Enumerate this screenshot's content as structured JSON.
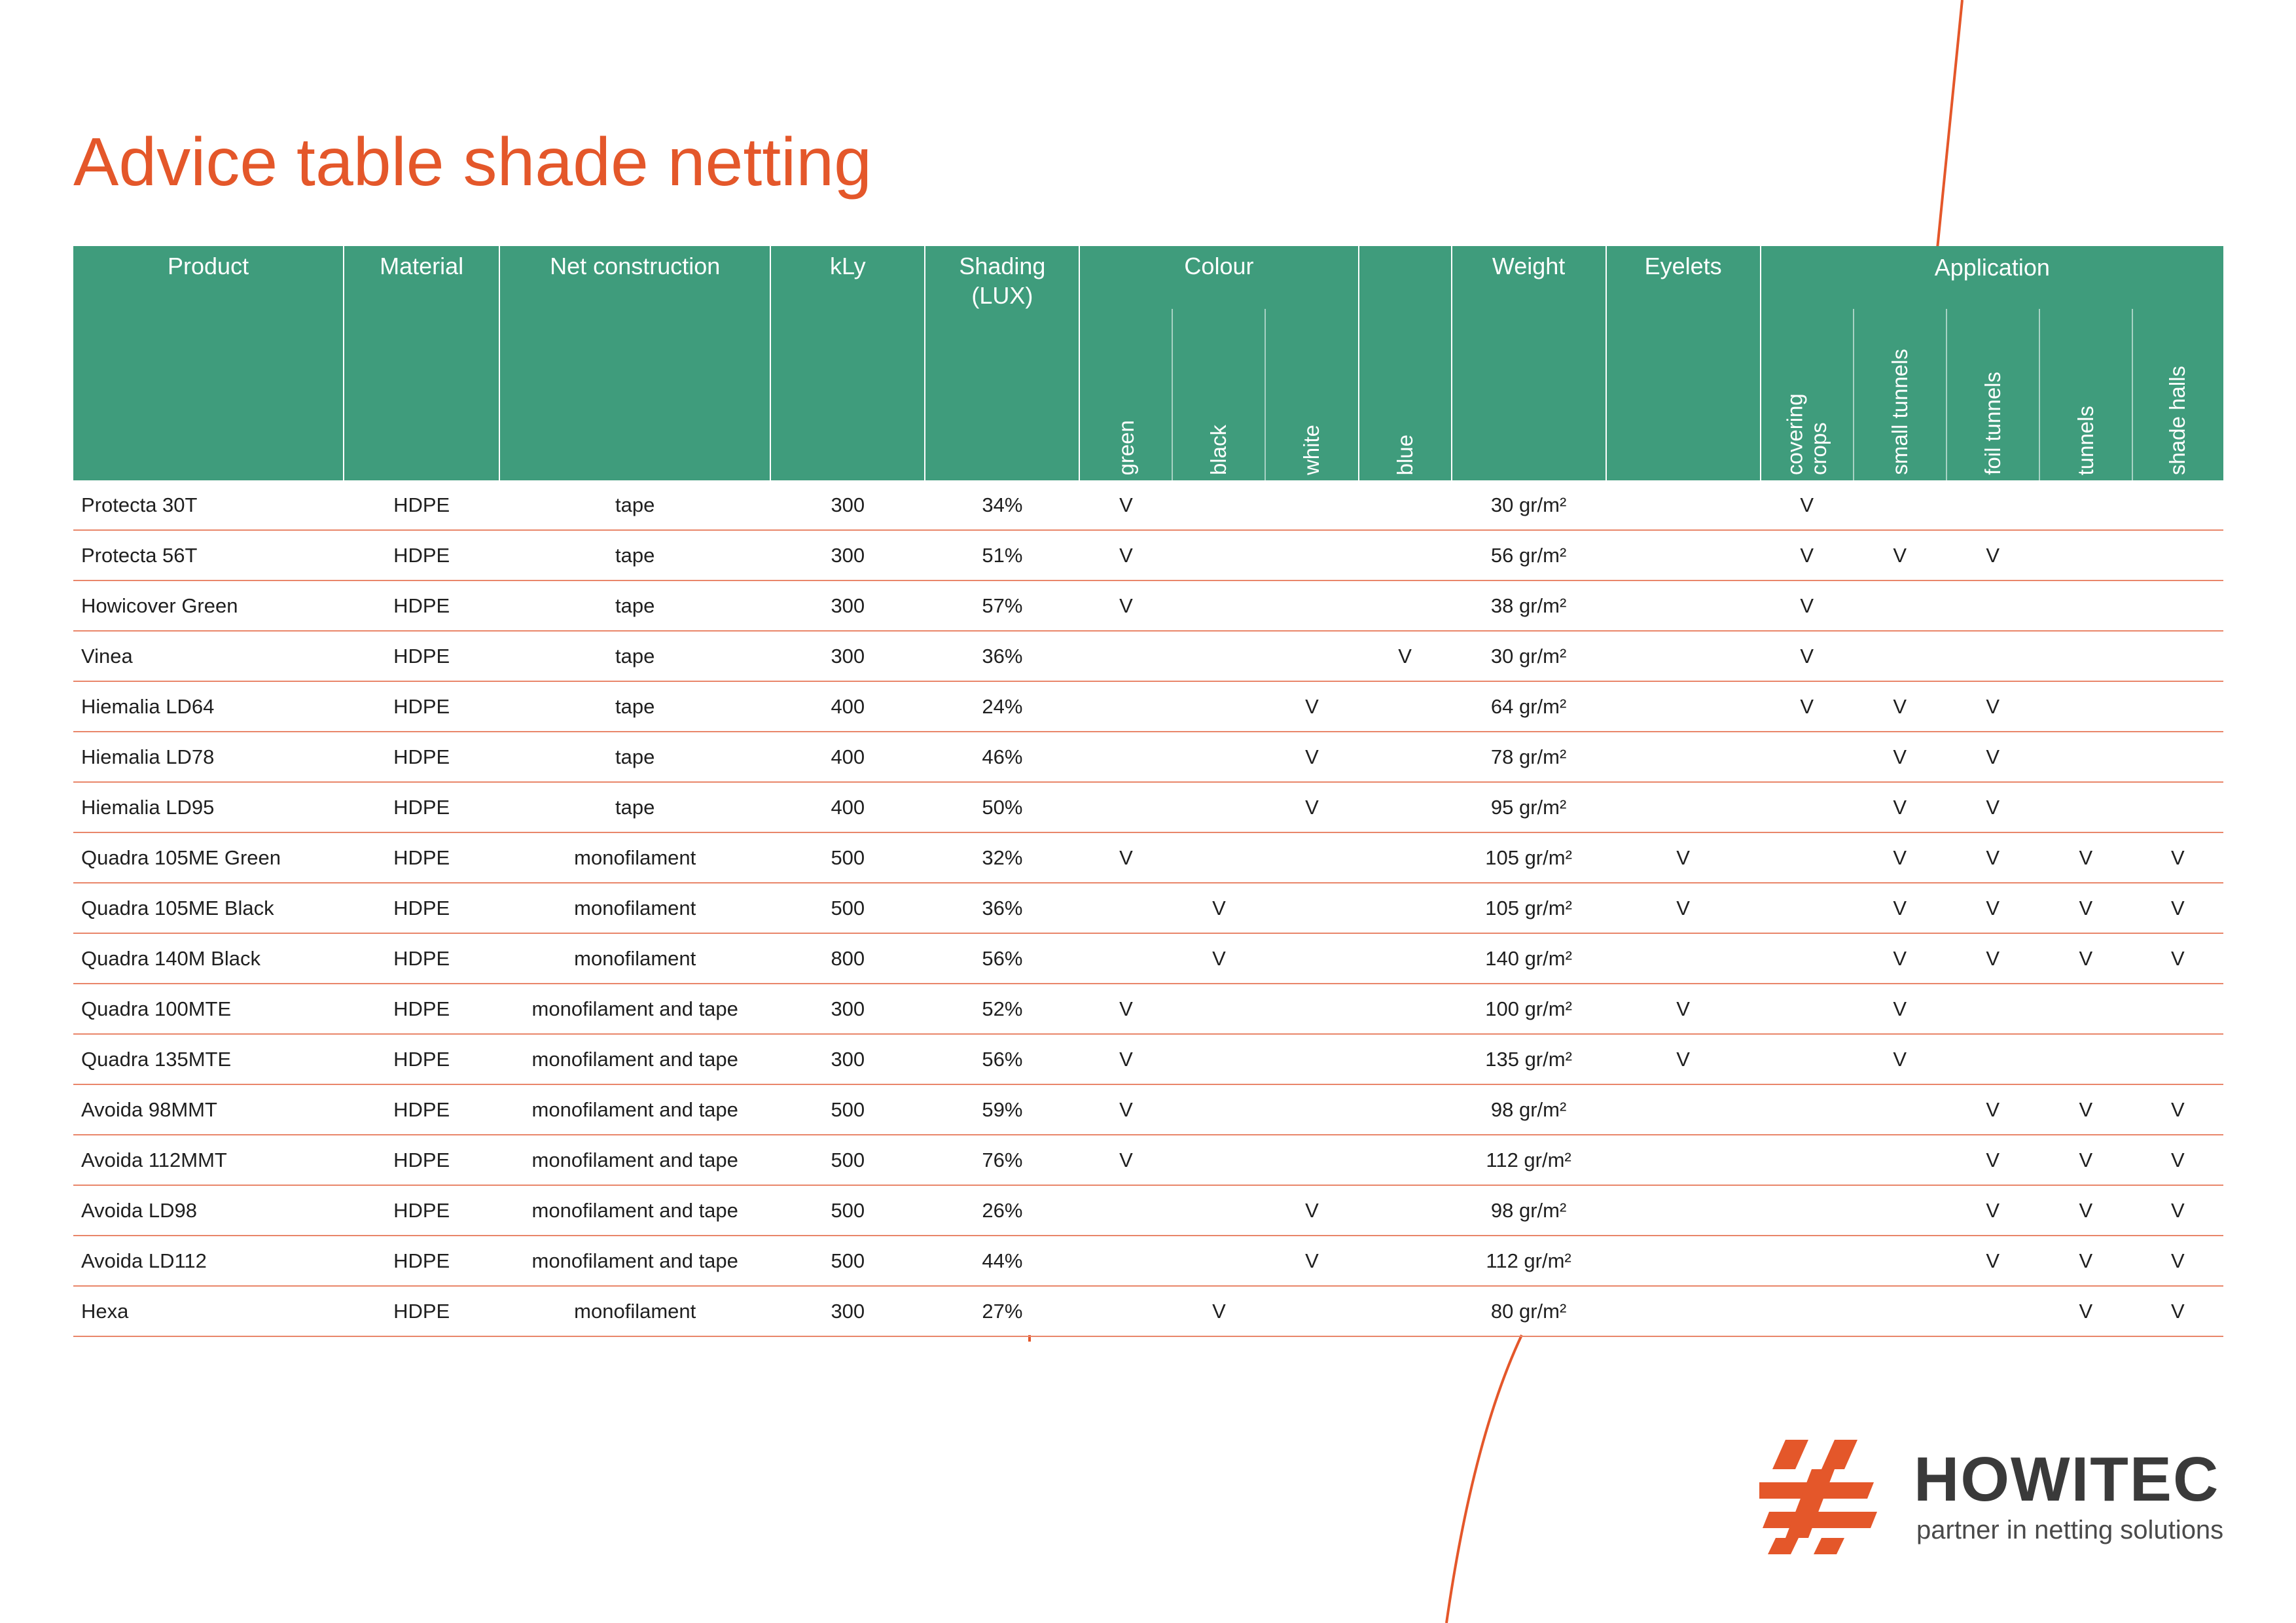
{
  "page": {
    "title": "Advice table shade netting"
  },
  "colors": {
    "accent": "#e4572a",
    "header_bg": "#3f9c7c",
    "row_border": "#e9866a",
    "text": "#1f1f1f"
  },
  "table": {
    "headers": {
      "product": "Product",
      "material": "Material",
      "net_construction": "Net construction",
      "kly": "kLy",
      "shading": "Shading\n(LUX)",
      "colour": "Colour",
      "weight": "Weight",
      "eyelets": "Eyelets",
      "application": "Application"
    },
    "colour_sub": [
      "green",
      "black",
      "white",
      "blue"
    ],
    "application_sub": [
      "covering crops",
      "small tunnels",
      "foil tunnels",
      "tunnels",
      "shade halls"
    ],
    "rows": [
      [
        "Protecta 30T",
        "HDPE",
        "tape",
        "300",
        "34%",
        "V",
        "",
        "",
        "",
        "30 gr/m²",
        "",
        "V",
        "",
        "",
        "",
        ""
      ],
      [
        "Protecta 56T",
        "HDPE",
        "tape",
        "300",
        "51%",
        "V",
        "",
        "",
        "",
        "56 gr/m²",
        "",
        "V",
        "V",
        "V",
        "",
        ""
      ],
      [
        "Howicover Green",
        "HDPE",
        "tape",
        "300",
        "57%",
        "V",
        "",
        "",
        "",
        "38 gr/m²",
        "",
        "V",
        "",
        "",
        "",
        ""
      ],
      [
        "Vinea",
        "HDPE",
        "tape",
        "300",
        "36%",
        "",
        "",
        "",
        "V",
        "30 gr/m²",
        "",
        "V",
        "",
        "",
        "",
        ""
      ],
      [
        "Hiemalia LD64",
        "HDPE",
        "tape",
        "400",
        "24%",
        "",
        "",
        "V",
        "",
        "64 gr/m²",
        "",
        "V",
        "V",
        "V",
        "",
        ""
      ],
      [
        "Hiemalia LD78",
        "HDPE",
        "tape",
        "400",
        "46%",
        "",
        "",
        "V",
        "",
        "78 gr/m²",
        "",
        "",
        "V",
        "V",
        "",
        ""
      ],
      [
        "Hiemalia LD95",
        "HDPE",
        "tape",
        "400",
        "50%",
        "",
        "",
        "V",
        "",
        "95 gr/m²",
        "",
        "",
        "V",
        "V",
        "",
        ""
      ],
      [
        "Quadra 105ME Green",
        "HDPE",
        "monofilament",
        "500",
        "32%",
        "V",
        "",
        "",
        "",
        "105 gr/m²",
        "V",
        "",
        "V",
        "V",
        "V",
        "V"
      ],
      [
        "Quadra 105ME Black",
        "HDPE",
        "monofilament",
        "500",
        "36%",
        "",
        "V",
        "",
        "",
        "105 gr/m²",
        "V",
        "",
        "V",
        "V",
        "V",
        "V"
      ],
      [
        "Quadra 140M Black",
        "HDPE",
        "monofilament",
        "800",
        "56%",
        "",
        "V",
        "",
        "",
        "140 gr/m²",
        "",
        "",
        "V",
        "V",
        "V",
        "V"
      ],
      [
        "Quadra 100MTE",
        "HDPE",
        "monofilament and tape",
        "300",
        "52%",
        "V",
        "",
        "",
        "",
        "100 gr/m²",
        "V",
        "",
        "V",
        "",
        "",
        ""
      ],
      [
        "Quadra 135MTE",
        "HDPE",
        "monofilament and tape",
        "300",
        "56%",
        "V",
        "",
        "",
        "",
        "135 gr/m²",
        "V",
        "",
        "V",
        "",
        "",
        ""
      ],
      [
        "Avoida 98MMT",
        "HDPE",
        "monofilament and tape",
        "500",
        "59%",
        "V",
        "",
        "",
        "",
        "98 gr/m²",
        "",
        "",
        "",
        "V",
        "V",
        "V"
      ],
      [
        "Avoida 112MMT",
        "HDPE",
        "monofilament and tape",
        "500",
        "76%",
        "V",
        "",
        "",
        "",
        "112 gr/m²",
        "",
        "",
        "",
        "V",
        "V",
        "V"
      ],
      [
        "Avoida LD98",
        "HDPE",
        "monofilament and tape",
        "500",
        "26%",
        "",
        "",
        "V",
        "",
        "98 gr/m²",
        "",
        "",
        "",
        "V",
        "V",
        "V"
      ],
      [
        "Avoida LD112",
        "HDPE",
        "monofilament and tape",
        "500",
        "44%",
        "",
        "",
        "V",
        "",
        "112 gr/m²",
        "",
        "",
        "",
        "V",
        "V",
        "V"
      ],
      [
        "Hexa",
        "HDPE",
        "monofilament",
        "300",
        "27%",
        "",
        "V",
        "",
        "",
        "80 gr/m²",
        "",
        "",
        "",
        "",
        "V",
        "V"
      ]
    ]
  },
  "logo": {
    "name": "HOWITEC",
    "tagline": "partner in netting solutions",
    "mark_icon": "howitec-logo-mark"
  }
}
